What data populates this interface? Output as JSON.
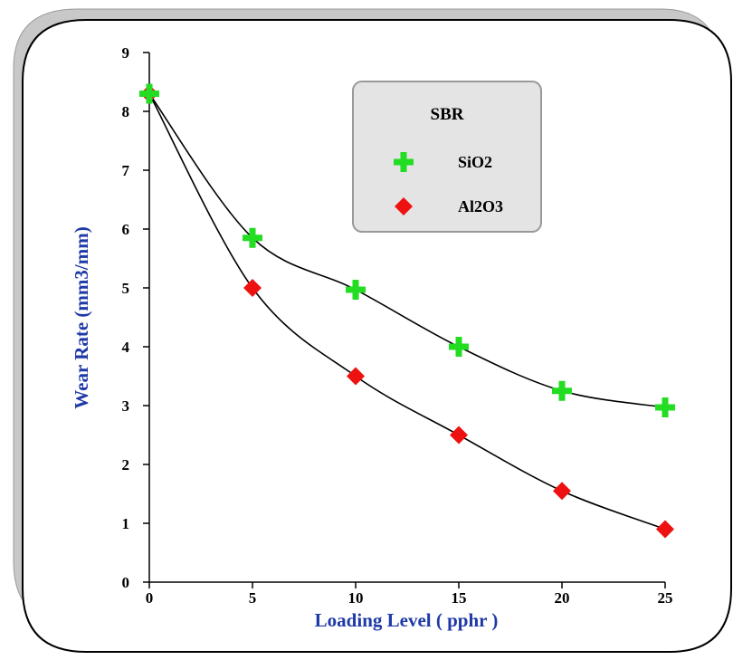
{
  "chart_data": {
    "type": "scatter",
    "title": "",
    "xlabel": "Loading Level ( pphr )",
    "ylabel": "Wear Rate (mm3/mm)",
    "xlim": [
      0,
      25
    ],
    "ylim": [
      0,
      9
    ],
    "x_ticks": [
      0,
      5,
      10,
      15,
      20,
      25
    ],
    "y_ticks": [
      0,
      1,
      2,
      3,
      4,
      5,
      6,
      7,
      8,
      9
    ],
    "grid": false,
    "legend": {
      "title": "SBR",
      "placement": "top-center"
    },
    "series": [
      {
        "name": "SiO2",
        "marker": "plus",
        "color": "#22dd22",
        "x": [
          0,
          5,
          10,
          15,
          20,
          25
        ],
        "y": [
          8.3,
          5.85,
          4.97,
          4.0,
          3.25,
          2.97
        ]
      },
      {
        "name": "Al2O3",
        "marker": "diamond",
        "color": "#ee1111",
        "x": [
          0,
          5,
          10,
          15,
          20,
          25
        ],
        "y": [
          8.3,
          5.0,
          3.5,
          2.5,
          1.55,
          0.9
        ]
      }
    ],
    "trend_line_color": "#000000"
  }
}
